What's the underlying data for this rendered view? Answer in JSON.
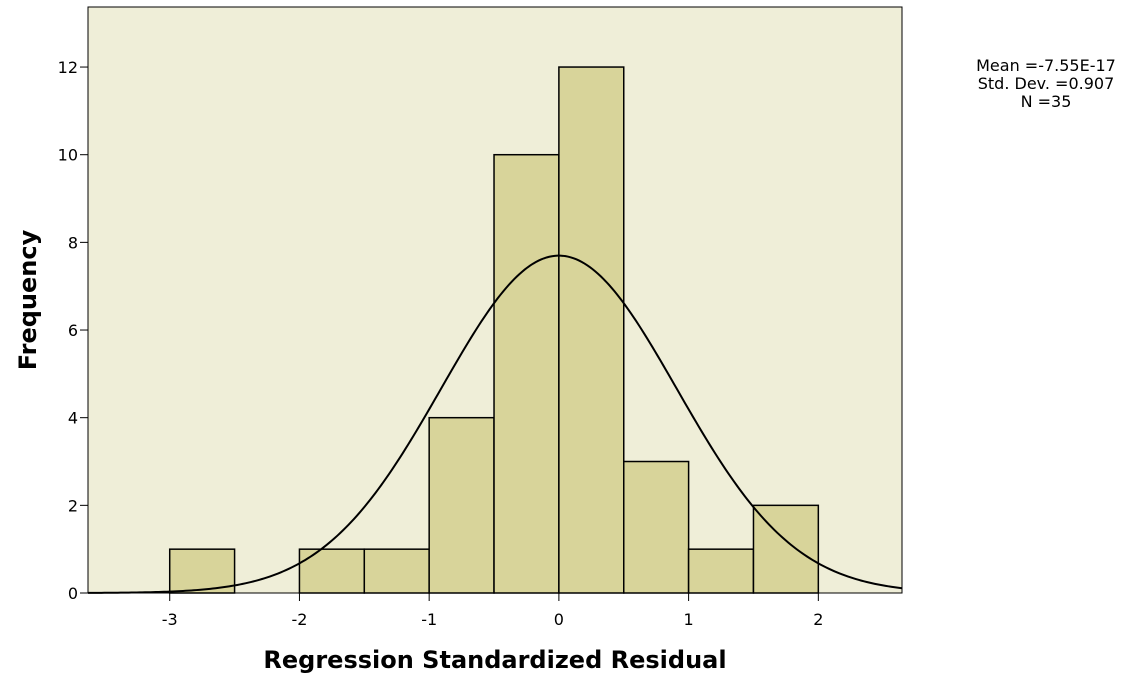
{
  "chart_data": {
    "type": "histogram",
    "xlabel": "Regression Standardized Residual",
    "ylabel": "Frequency",
    "bins": [
      -3,
      -2.5,
      -2,
      -1.5,
      -1,
      -0.5,
      0,
      0.5,
      1,
      1.5,
      2
    ],
    "values": [
      1,
      0,
      1,
      1,
      4,
      10,
      12,
      3,
      1,
      2
    ],
    "color": "#d8d49a",
    "background": "#efeed8",
    "xlim": [
      -3.63,
      2.645
    ],
    "xticks": [
      -3,
      -2,
      -1,
      0,
      1,
      2
    ],
    "ylim": [
      0,
      13.37
    ],
    "yticks": [
      0,
      2,
      4,
      6,
      8,
      10,
      12
    ],
    "stats": [
      "Mean =-7.55E-17",
      "Std. Dev. =0.907",
      "N =35"
    ],
    "normal_curve": {
      "mean": -7.55e-17,
      "std_dev": 0.907,
      "n": 35
    }
  }
}
